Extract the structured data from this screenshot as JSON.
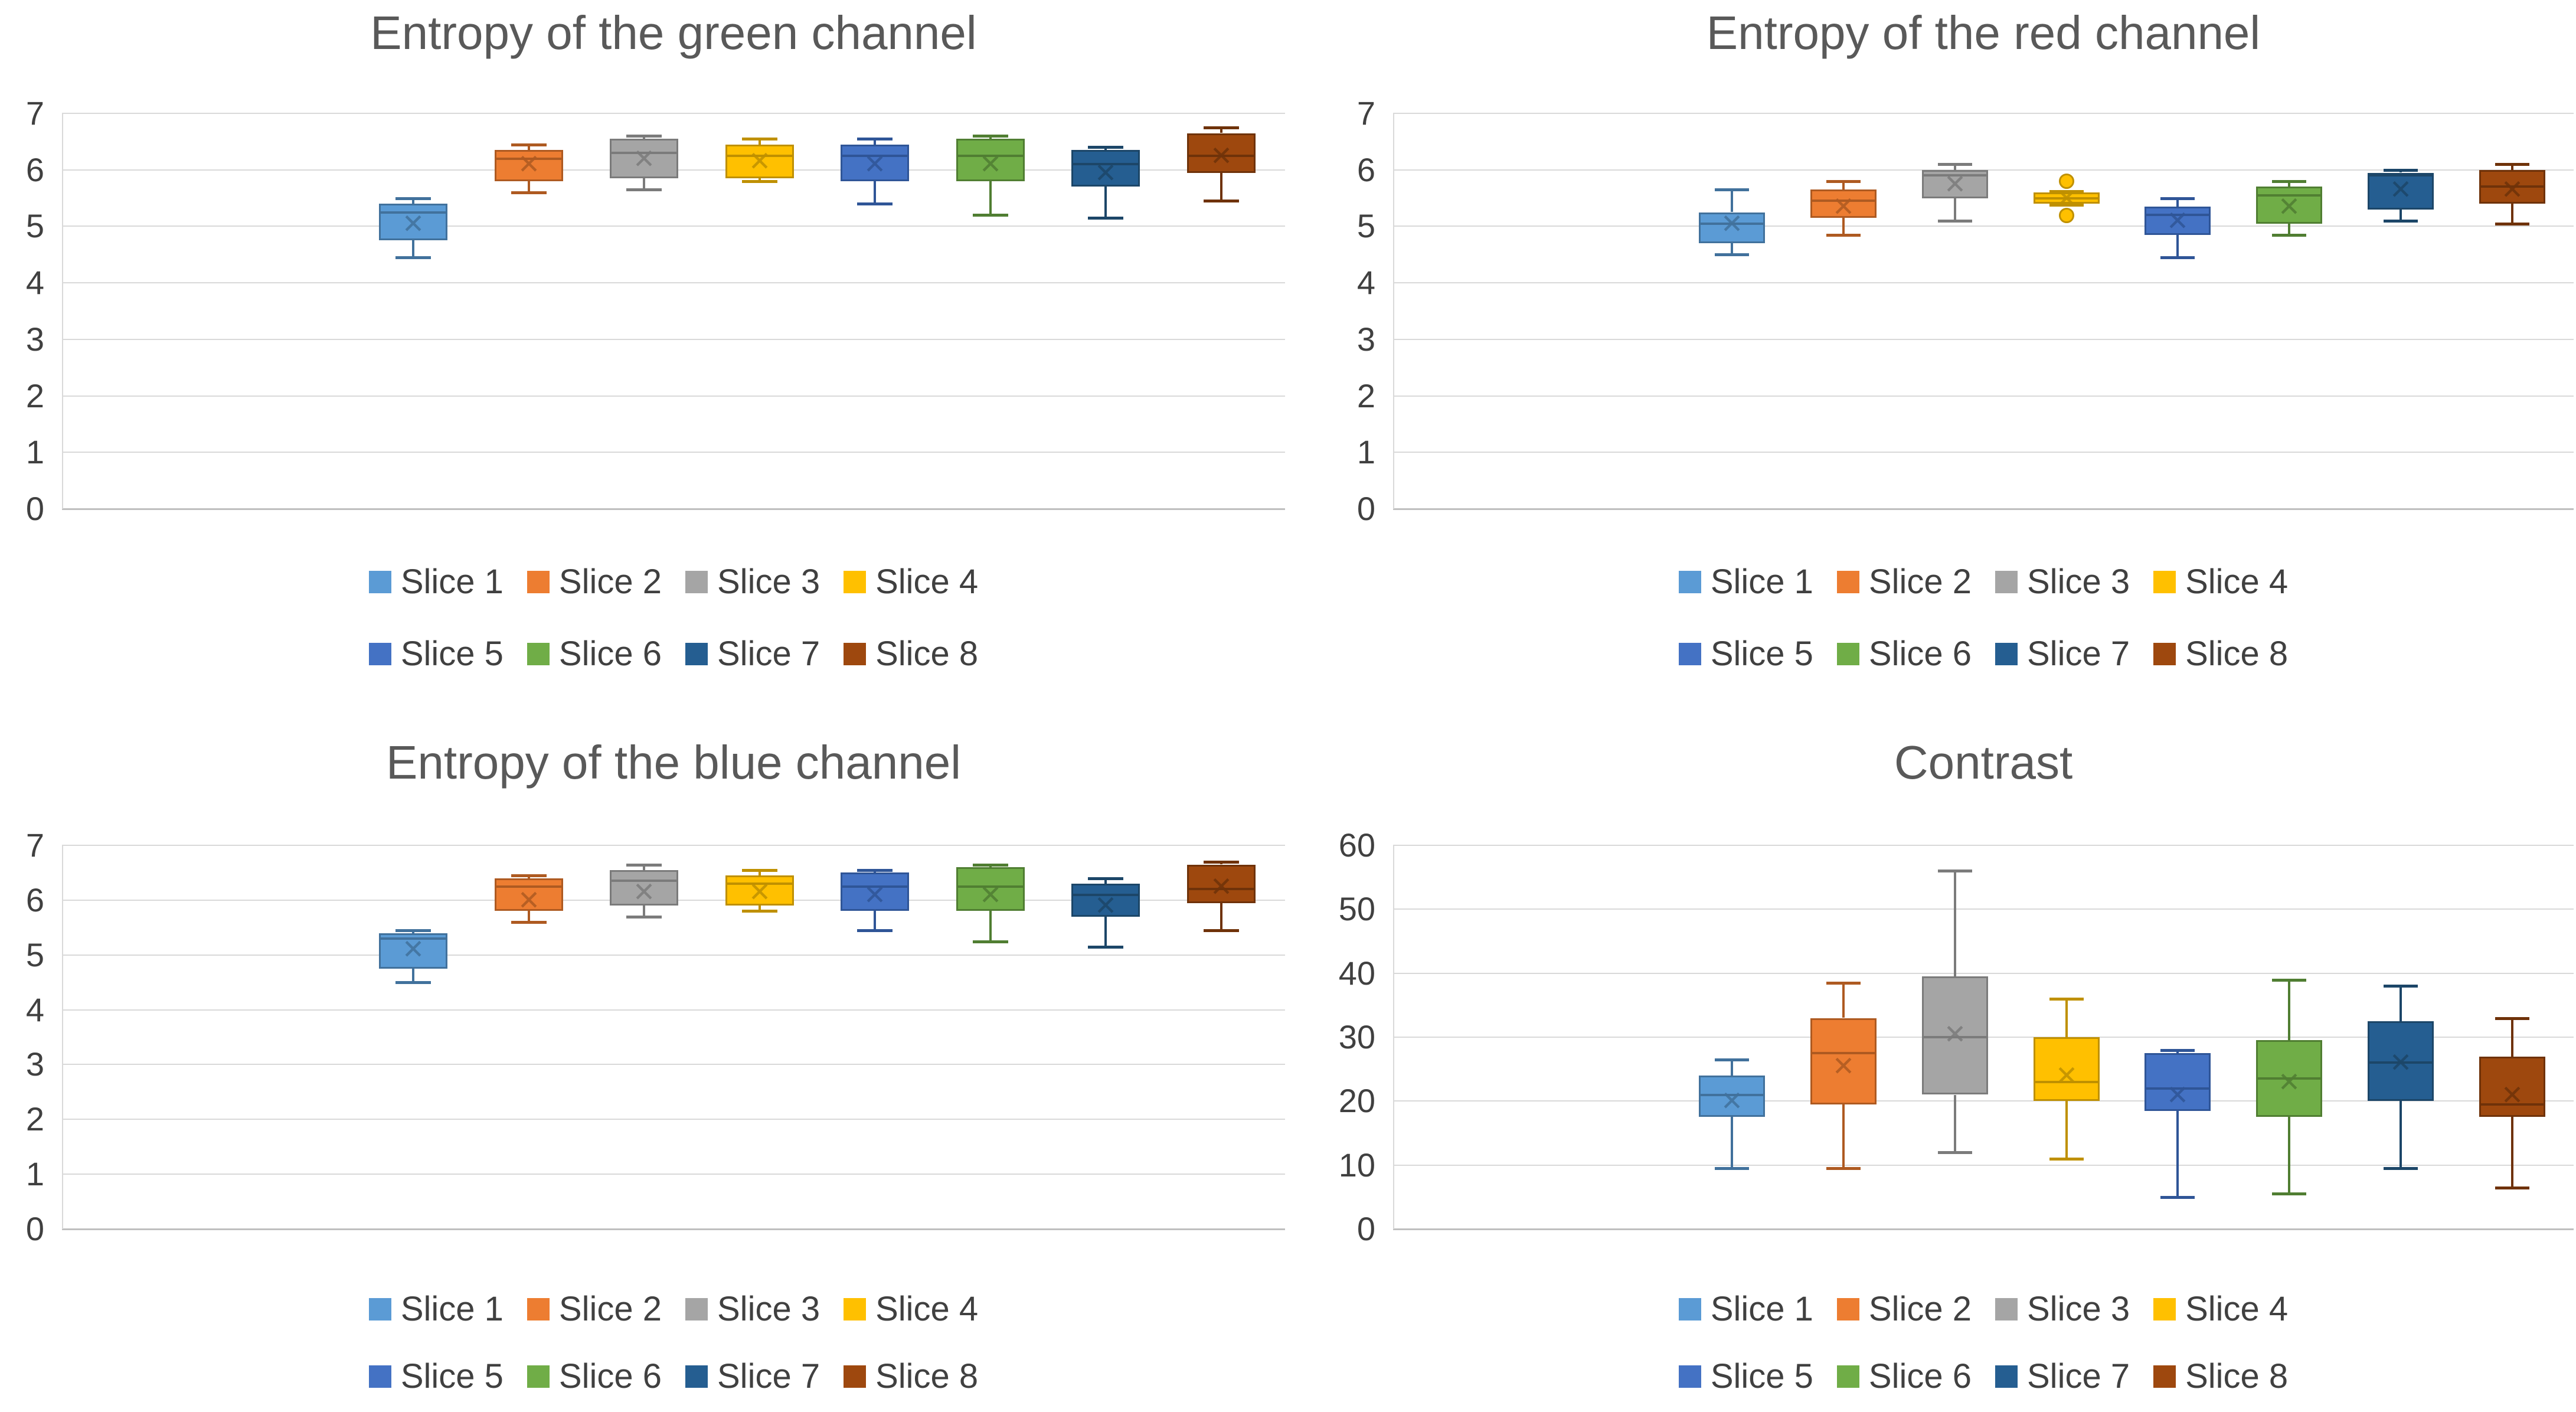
{
  "legend_rows": [
    [
      "Slice 1",
      "Slice 2",
      "Slice 3",
      "Slice 4"
    ],
    [
      "Slice 5",
      "Slice 6",
      "Slice 7",
      "Slice 8"
    ]
  ],
  "palette": {
    "Slice 1": {
      "fill": "#5B9BD5",
      "stroke": "#41719C"
    },
    "Slice 2": {
      "fill": "#ED7D31",
      "stroke": "#AE5A21"
    },
    "Slice 3": {
      "fill": "#A5A5A5",
      "stroke": "#7B7B7B"
    },
    "Slice 4": {
      "fill": "#FFC000",
      "stroke": "#BF9000"
    },
    "Slice 5": {
      "fill": "#4472C4",
      "stroke": "#2F5597"
    },
    "Slice 6": {
      "fill": "#70AD47",
      "stroke": "#507E32"
    },
    "Slice 7": {
      "fill": "#255E91",
      "stroke": "#1C4668"
    },
    "Slice 8": {
      "fill": "#9E480E",
      "stroke": "#6F3209"
    }
  },
  "chart_data": [
    {
      "type": "box",
      "title": "Entropy of the green channel",
      "ylim": [
        0,
        7
      ],
      "yticks": [
        7,
        6,
        5,
        4,
        3,
        2,
        1,
        0
      ],
      "grid": true,
      "legend_position": "bottom",
      "series": [
        {
          "name": "Slice 1",
          "low": 4.45,
          "q1": 4.75,
          "median": 5.25,
          "q3": 5.4,
          "high": 5.5,
          "mean": 5.05,
          "outliers": []
        },
        {
          "name": "Slice 2",
          "low": 5.6,
          "q1": 5.8,
          "median": 6.2,
          "q3": 6.35,
          "high": 6.45,
          "mean": 6.1,
          "outliers": []
        },
        {
          "name": "Slice 3",
          "low": 5.65,
          "q1": 5.85,
          "median": 6.3,
          "q3": 6.55,
          "high": 6.6,
          "mean": 6.2,
          "outliers": []
        },
        {
          "name": "Slice 4",
          "low": 5.8,
          "q1": 5.85,
          "median": 6.25,
          "q3": 6.45,
          "high": 6.55,
          "mean": 6.15,
          "outliers": []
        },
        {
          "name": "Slice 5",
          "low": 5.4,
          "q1": 5.8,
          "median": 6.25,
          "q3": 6.45,
          "high": 6.55,
          "mean": 6.1,
          "outliers": []
        },
        {
          "name": "Slice 6",
          "low": 5.2,
          "q1": 5.8,
          "median": 6.25,
          "q3": 6.55,
          "high": 6.6,
          "mean": 6.1,
          "outliers": []
        },
        {
          "name": "Slice 7",
          "low": 5.15,
          "q1": 5.7,
          "median": 6.1,
          "q3": 6.35,
          "high": 6.4,
          "mean": 5.95,
          "outliers": []
        },
        {
          "name": "Slice 8",
          "low": 5.45,
          "q1": 5.95,
          "median": 6.25,
          "q3": 6.65,
          "high": 6.75,
          "mean": 6.25,
          "outliers": []
        }
      ]
    },
    {
      "type": "box",
      "title": "Entropy of the red channel",
      "ylim": [
        0,
        7
      ],
      "yticks": [
        7,
        6,
        5,
        4,
        3,
        2,
        1,
        0
      ],
      "grid": true,
      "legend_position": "bottom",
      "series": [
        {
          "name": "Slice 1",
          "low": 4.5,
          "q1": 4.7,
          "median": 5.05,
          "q3": 5.25,
          "high": 5.65,
          "mean": 5.05,
          "outliers": []
        },
        {
          "name": "Slice 2",
          "low": 4.85,
          "q1": 5.15,
          "median": 5.45,
          "q3": 5.65,
          "high": 5.8,
          "mean": 5.35,
          "outliers": []
        },
        {
          "name": "Slice 3",
          "low": 5.1,
          "q1": 5.5,
          "median": 5.9,
          "q3": 6.0,
          "high": 6.1,
          "mean": 5.75,
          "outliers": []
        },
        {
          "name": "Slice 4",
          "low": 5.38,
          "q1": 5.4,
          "median": 5.5,
          "q3": 5.6,
          "high": 5.62,
          "mean": 5.5,
          "outliers": [
            5.8,
            5.19
          ]
        },
        {
          "name": "Slice 5",
          "low": 4.45,
          "q1": 4.85,
          "median": 5.2,
          "q3": 5.35,
          "high": 5.5,
          "mean": 5.1,
          "outliers": []
        },
        {
          "name": "Slice 6",
          "low": 4.85,
          "q1": 5.05,
          "median": 5.55,
          "q3": 5.7,
          "high": 5.8,
          "mean": 5.35,
          "outliers": []
        },
        {
          "name": "Slice 7",
          "low": 5.1,
          "q1": 5.3,
          "median": 5.9,
          "q3": 5.95,
          "high": 6.0,
          "mean": 5.65,
          "outliers": []
        },
        {
          "name": "Slice 8",
          "low": 5.05,
          "q1": 5.4,
          "median": 5.7,
          "q3": 6.0,
          "high": 6.1,
          "mean": 5.65,
          "outliers": []
        }
      ]
    },
    {
      "type": "box",
      "title": "Entropy of the blue channel",
      "ylim": [
        0,
        7
      ],
      "yticks": [
        7,
        6,
        5,
        4,
        3,
        2,
        1,
        0
      ],
      "grid": true,
      "legend_position": "bottom",
      "series": [
        {
          "name": "Slice 1",
          "low": 4.5,
          "q1": 4.75,
          "median": 5.3,
          "q3": 5.4,
          "high": 5.45,
          "mean": 5.1,
          "outliers": []
        },
        {
          "name": "Slice 2",
          "low": 5.6,
          "q1": 5.8,
          "median": 6.25,
          "q3": 6.4,
          "high": 6.45,
          "mean": 6.0,
          "outliers": []
        },
        {
          "name": "Slice 3",
          "low": 5.7,
          "q1": 5.9,
          "median": 6.35,
          "q3": 6.55,
          "high": 6.65,
          "mean": 6.15,
          "outliers": []
        },
        {
          "name": "Slice 4",
          "low": 5.8,
          "q1": 5.9,
          "median": 6.3,
          "q3": 6.45,
          "high": 6.55,
          "mean": 6.15,
          "outliers": []
        },
        {
          "name": "Slice 5",
          "low": 5.45,
          "q1": 5.8,
          "median": 6.25,
          "q3": 6.5,
          "high": 6.55,
          "mean": 6.1,
          "outliers": []
        },
        {
          "name": "Slice 6",
          "low": 5.25,
          "q1": 5.8,
          "median": 6.25,
          "q3": 6.6,
          "high": 6.65,
          "mean": 6.1,
          "outliers": []
        },
        {
          "name": "Slice 7",
          "low": 5.15,
          "q1": 5.7,
          "median": 6.1,
          "q3": 6.3,
          "high": 6.4,
          "mean": 5.9,
          "outliers": []
        },
        {
          "name": "Slice 8",
          "low": 5.45,
          "q1": 5.95,
          "median": 6.2,
          "q3": 6.65,
          "high": 6.7,
          "mean": 6.25,
          "outliers": []
        }
      ]
    },
    {
      "type": "box",
      "title": "Contrast",
      "ylim": [
        0,
        60
      ],
      "yticks": [
        60,
        50,
        40,
        30,
        20,
        10,
        0
      ],
      "grid": true,
      "legend_position": "bottom",
      "series": [
        {
          "name": "Slice 1",
          "low": 9.5,
          "q1": 17.5,
          "median": 21,
          "q3": 24,
          "high": 26.5,
          "mean": 20,
          "outliers": []
        },
        {
          "name": "Slice 2",
          "low": 9.5,
          "q1": 19.5,
          "median": 27.5,
          "q3": 33,
          "high": 38.5,
          "mean": 25.5,
          "outliers": []
        },
        {
          "name": "Slice 3",
          "low": 12,
          "q1": 21,
          "median": 30,
          "q3": 39.5,
          "high": 56,
          "mean": 30.5,
          "outliers": []
        },
        {
          "name": "Slice 4",
          "low": 11,
          "q1": 20,
          "median": 23,
          "q3": 30,
          "high": 36,
          "mean": 24,
          "outliers": []
        },
        {
          "name": "Slice 5",
          "low": 5,
          "q1": 18.5,
          "median": 22,
          "q3": 27.5,
          "high": 28,
          "mean": 21,
          "outliers": []
        },
        {
          "name": "Slice 6",
          "low": 5.5,
          "q1": 17.5,
          "median": 23.5,
          "q3": 29.5,
          "high": 39,
          "mean": 23,
          "outliers": []
        },
        {
          "name": "Slice 7",
          "low": 9.5,
          "q1": 20,
          "median": 26,
          "q3": 32.5,
          "high": 38,
          "mean": 26,
          "outliers": []
        },
        {
          "name": "Slice 8",
          "low": 6.5,
          "q1": 17.5,
          "median": 19.5,
          "q3": 27,
          "high": 33,
          "mean": 21,
          "outliers": []
        }
      ]
    }
  ]
}
